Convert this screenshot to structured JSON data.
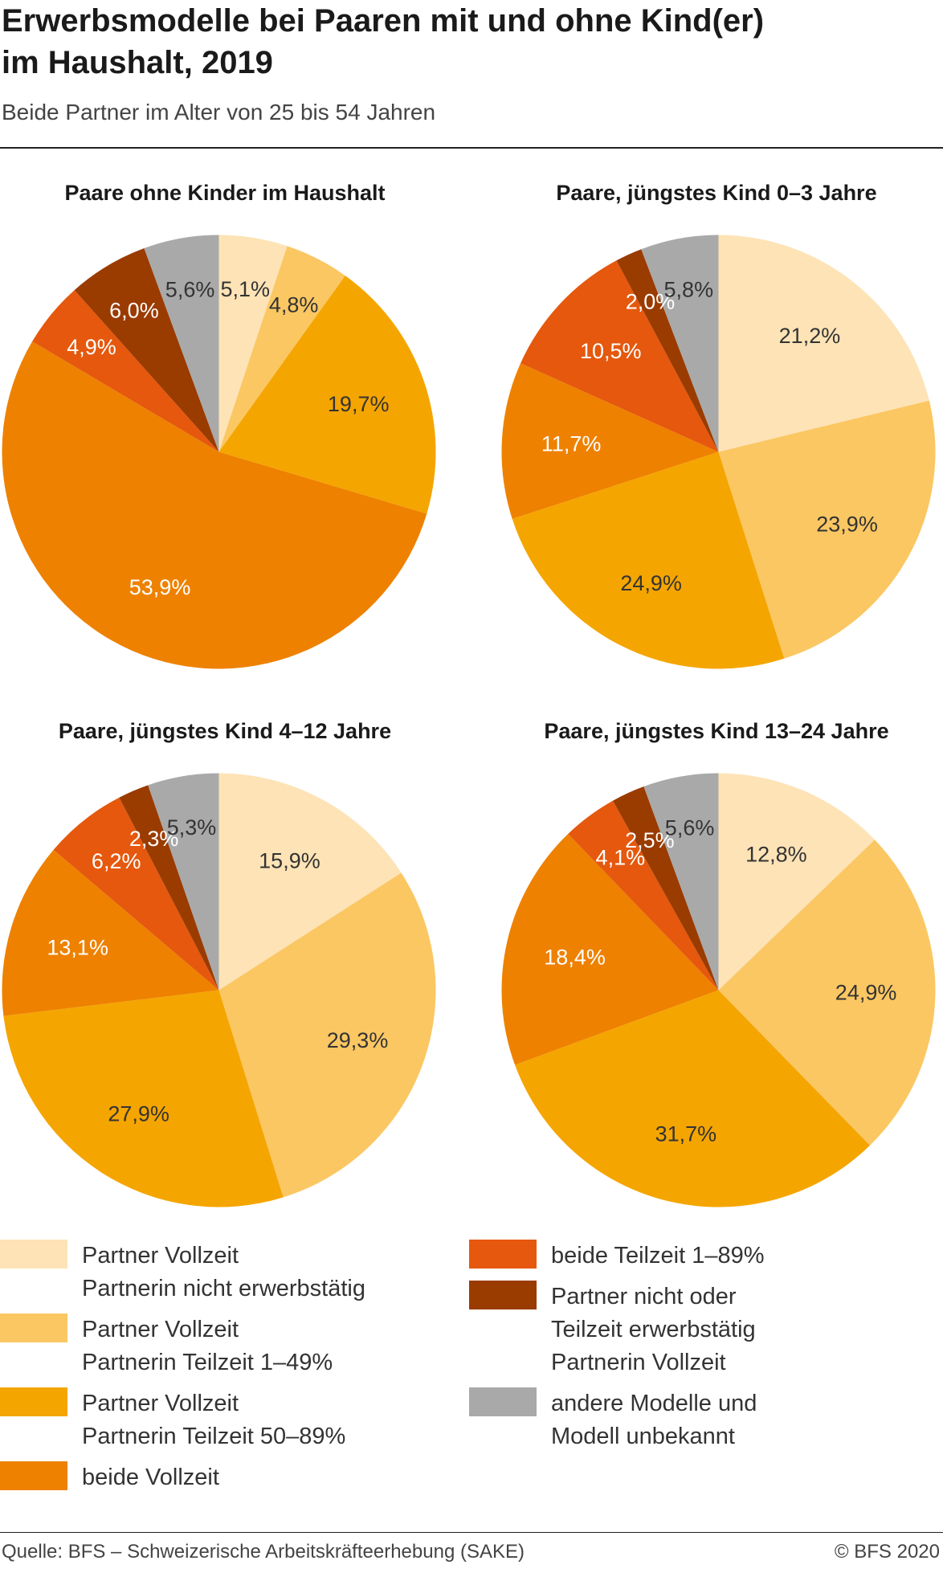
{
  "title_line1": "Erwerbsmodelle bei Paaren mit und ohne Kind(er)",
  "title_line2": "im Haushalt, 2019",
  "subtitle": "Beide Partner im Alter von 25 bis 54 Jahren",
  "colors": [
    "#fde3b6",
    "#fbc763",
    "#f5a500",
    "#ee8100",
    "#e5580d",
    "#9a3b00",
    "#a9a9a9"
  ],
  "chart_data": [
    {
      "type": "pie",
      "title": "Paare ohne Kinder im Haushalt",
      "values": [
        5.1,
        4.8,
        19.7,
        53.9,
        4.9,
        6.0,
        5.6
      ],
      "labels": [
        "5,1%",
        "4,8%",
        "19,7%",
        "53,9%",
        "4,9%",
        "6,0%",
        "5,6%"
      ]
    },
    {
      "type": "pie",
      "title": "Paare, jüngstes Kind 0–3 Jahre",
      "values": [
        21.2,
        23.9,
        24.9,
        11.7,
        10.5,
        2.0,
        5.8
      ],
      "labels": [
        "21,2%",
        "23,9%",
        "24,9%",
        "11,7%",
        "10,5%",
        "2,0%",
        "5,8%"
      ]
    },
    {
      "type": "pie",
      "title": "Paare, jüngstes Kind 4–12 Jahre",
      "values": [
        15.9,
        29.3,
        27.9,
        13.1,
        6.2,
        2.3,
        5.3
      ],
      "labels": [
        "15,9%",
        "29,3%",
        "27,9%",
        "13,1%",
        "6,2%",
        "2,3%",
        "5,3%"
      ]
    },
    {
      "type": "pie",
      "title": "Paare, jüngstes Kind 13–24 Jahre",
      "values": [
        12.8,
        24.9,
        31.7,
        18.4,
        4.1,
        2.5,
        5.6
      ],
      "labels": [
        "12,8%",
        "24,9%",
        "31,7%",
        "18,4%",
        "4,1%",
        "2,5%",
        "5,6%"
      ]
    }
  ],
  "legend": [
    "Partner Vollzeit\nPartnerin nicht erwerbstätig",
    "Partner Vollzeit\nPartnerin Teilzeit 1–49%",
    "Partner Vollzeit\nPartnerin Teilzeit 50–89%",
    "beide Vollzeit",
    "beide Teilzeit 1–89%",
    "Partner nicht oder\nTeilzeit erwerbstätig\nPartnerin Vollzeit",
    "andere Modelle und\nModell unbekannt"
  ],
  "source": "Quelle: BFS – Schweizerische Arbeitskräfteerhebung (SAKE)",
  "copyright": "© BFS 2020"
}
